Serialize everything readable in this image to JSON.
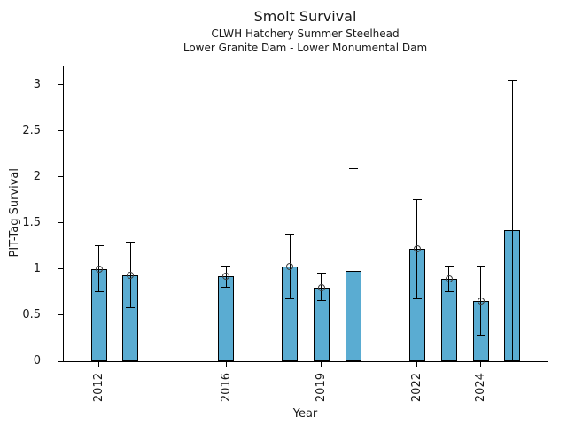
{
  "chart_data": {
    "type": "bar",
    "title": "Smolt Survival",
    "subtitles": [
      "CLWH Hatchery Summer Steelhead",
      "Lower Granite Dam - Lower Monumental Dam"
    ],
    "xlabel": "Year",
    "ylabel": "PIT-Tag Survival",
    "ylim": [
      0,
      3.2
    ],
    "yticks": [
      0,
      0.5,
      1,
      1.5,
      2,
      2.5,
      3
    ],
    "xticks": [
      2012,
      2016,
      2019,
      2022,
      2024
    ],
    "xrange_years": [
      2010.9,
      2026.1
    ],
    "grid": false,
    "legend": "none",
    "bars": [
      {
        "year": 2012,
        "value": 1.0,
        "ci_low": 0.75,
        "ci_high": 1.25,
        "marker": true
      },
      {
        "year": 2013,
        "value": 0.93,
        "ci_low": 0.58,
        "ci_high": 1.29,
        "marker": true
      },
      {
        "year": 2016,
        "value": 0.92,
        "ci_low": 0.8,
        "ci_high": 1.03,
        "marker": true
      },
      {
        "year": 2018,
        "value": 1.03,
        "ci_low": 0.68,
        "ci_high": 1.38,
        "marker": true
      },
      {
        "year": 2019,
        "value": 0.8,
        "ci_low": 0.66,
        "ci_high": 0.96,
        "marker": true
      },
      {
        "year": 2020,
        "value": 0.98,
        "ci_low": 0,
        "ci_high": 2.09,
        "marker": false
      },
      {
        "year": 2022,
        "value": 1.22,
        "ci_low": 0.68,
        "ci_high": 1.75,
        "marker": true
      },
      {
        "year": 2023,
        "value": 0.89,
        "ci_low": 0.75,
        "ci_high": 1.03,
        "marker": true
      },
      {
        "year": 2024,
        "value": 0.65,
        "ci_low": 0.28,
        "ci_high": 1.03,
        "marker": true
      },
      {
        "year": 2025,
        "value": 1.42,
        "ci_low": 0,
        "ci_high": 3.05,
        "marker": false
      }
    ],
    "colors": {
      "bar_fill": "#5AACD2",
      "bar_edge": "#000000",
      "error_bar": "#000000",
      "marker_edge": "#3d3d3d",
      "text": "#1a1a1a"
    }
  }
}
